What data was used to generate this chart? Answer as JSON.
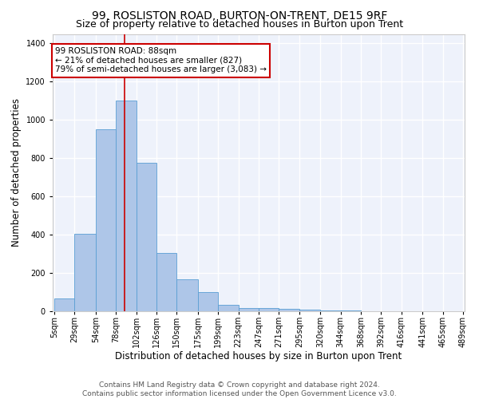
{
  "title": "99, ROSLISTON ROAD, BURTON-ON-TRENT, DE15 9RF",
  "subtitle": "Size of property relative to detached houses in Burton upon Trent",
  "xlabel": "Distribution of detached houses by size in Burton upon Trent",
  "ylabel": "Number of detached properties",
  "footer": "Contains HM Land Registry data © Crown copyright and database right 2024.\nContains public sector information licensed under the Open Government Licence v3.0.",
  "annotation_line1": "99 ROSLISTON ROAD: 88sqm",
  "annotation_line2": "← 21% of detached houses are smaller (827)",
  "annotation_line3": "79% of semi-detached houses are larger (3,083) →",
  "property_size": 88,
  "bin_edges": [
    5,
    29,
    54,
    78,
    102,
    126,
    150,
    175,
    199,
    223,
    247,
    271,
    295,
    320,
    344,
    368,
    392,
    416,
    441,
    465,
    489
  ],
  "bin_labels": [
    "5sqm",
    "29sqm",
    "54sqm",
    "78sqm",
    "102sqm",
    "126sqm",
    "150sqm",
    "175sqm",
    "199sqm",
    "223sqm",
    "247sqm",
    "271sqm",
    "295sqm",
    "320sqm",
    "344sqm",
    "368sqm",
    "392sqm",
    "416sqm",
    "441sqm",
    "465sqm",
    "489sqm"
  ],
  "counts": [
    65,
    405,
    950,
    1100,
    775,
    305,
    165,
    100,
    35,
    18,
    15,
    12,
    8,
    5,
    3,
    2,
    2,
    1,
    1,
    1
  ],
  "bar_color": "#aec6e8",
  "bar_edge_color": "#5a9fd4",
  "vline_color": "#cc0000",
  "annotation_box_color": "#cc0000",
  "ylim": [
    0,
    1450
  ],
  "bg_color": "#eef2fb",
  "grid_color": "#ffffff",
  "title_fontsize": 10,
  "subtitle_fontsize": 9,
  "axis_label_fontsize": 8.5,
  "tick_fontsize": 7,
  "footer_fontsize": 6.5,
  "annotation_fontsize": 7.5
}
